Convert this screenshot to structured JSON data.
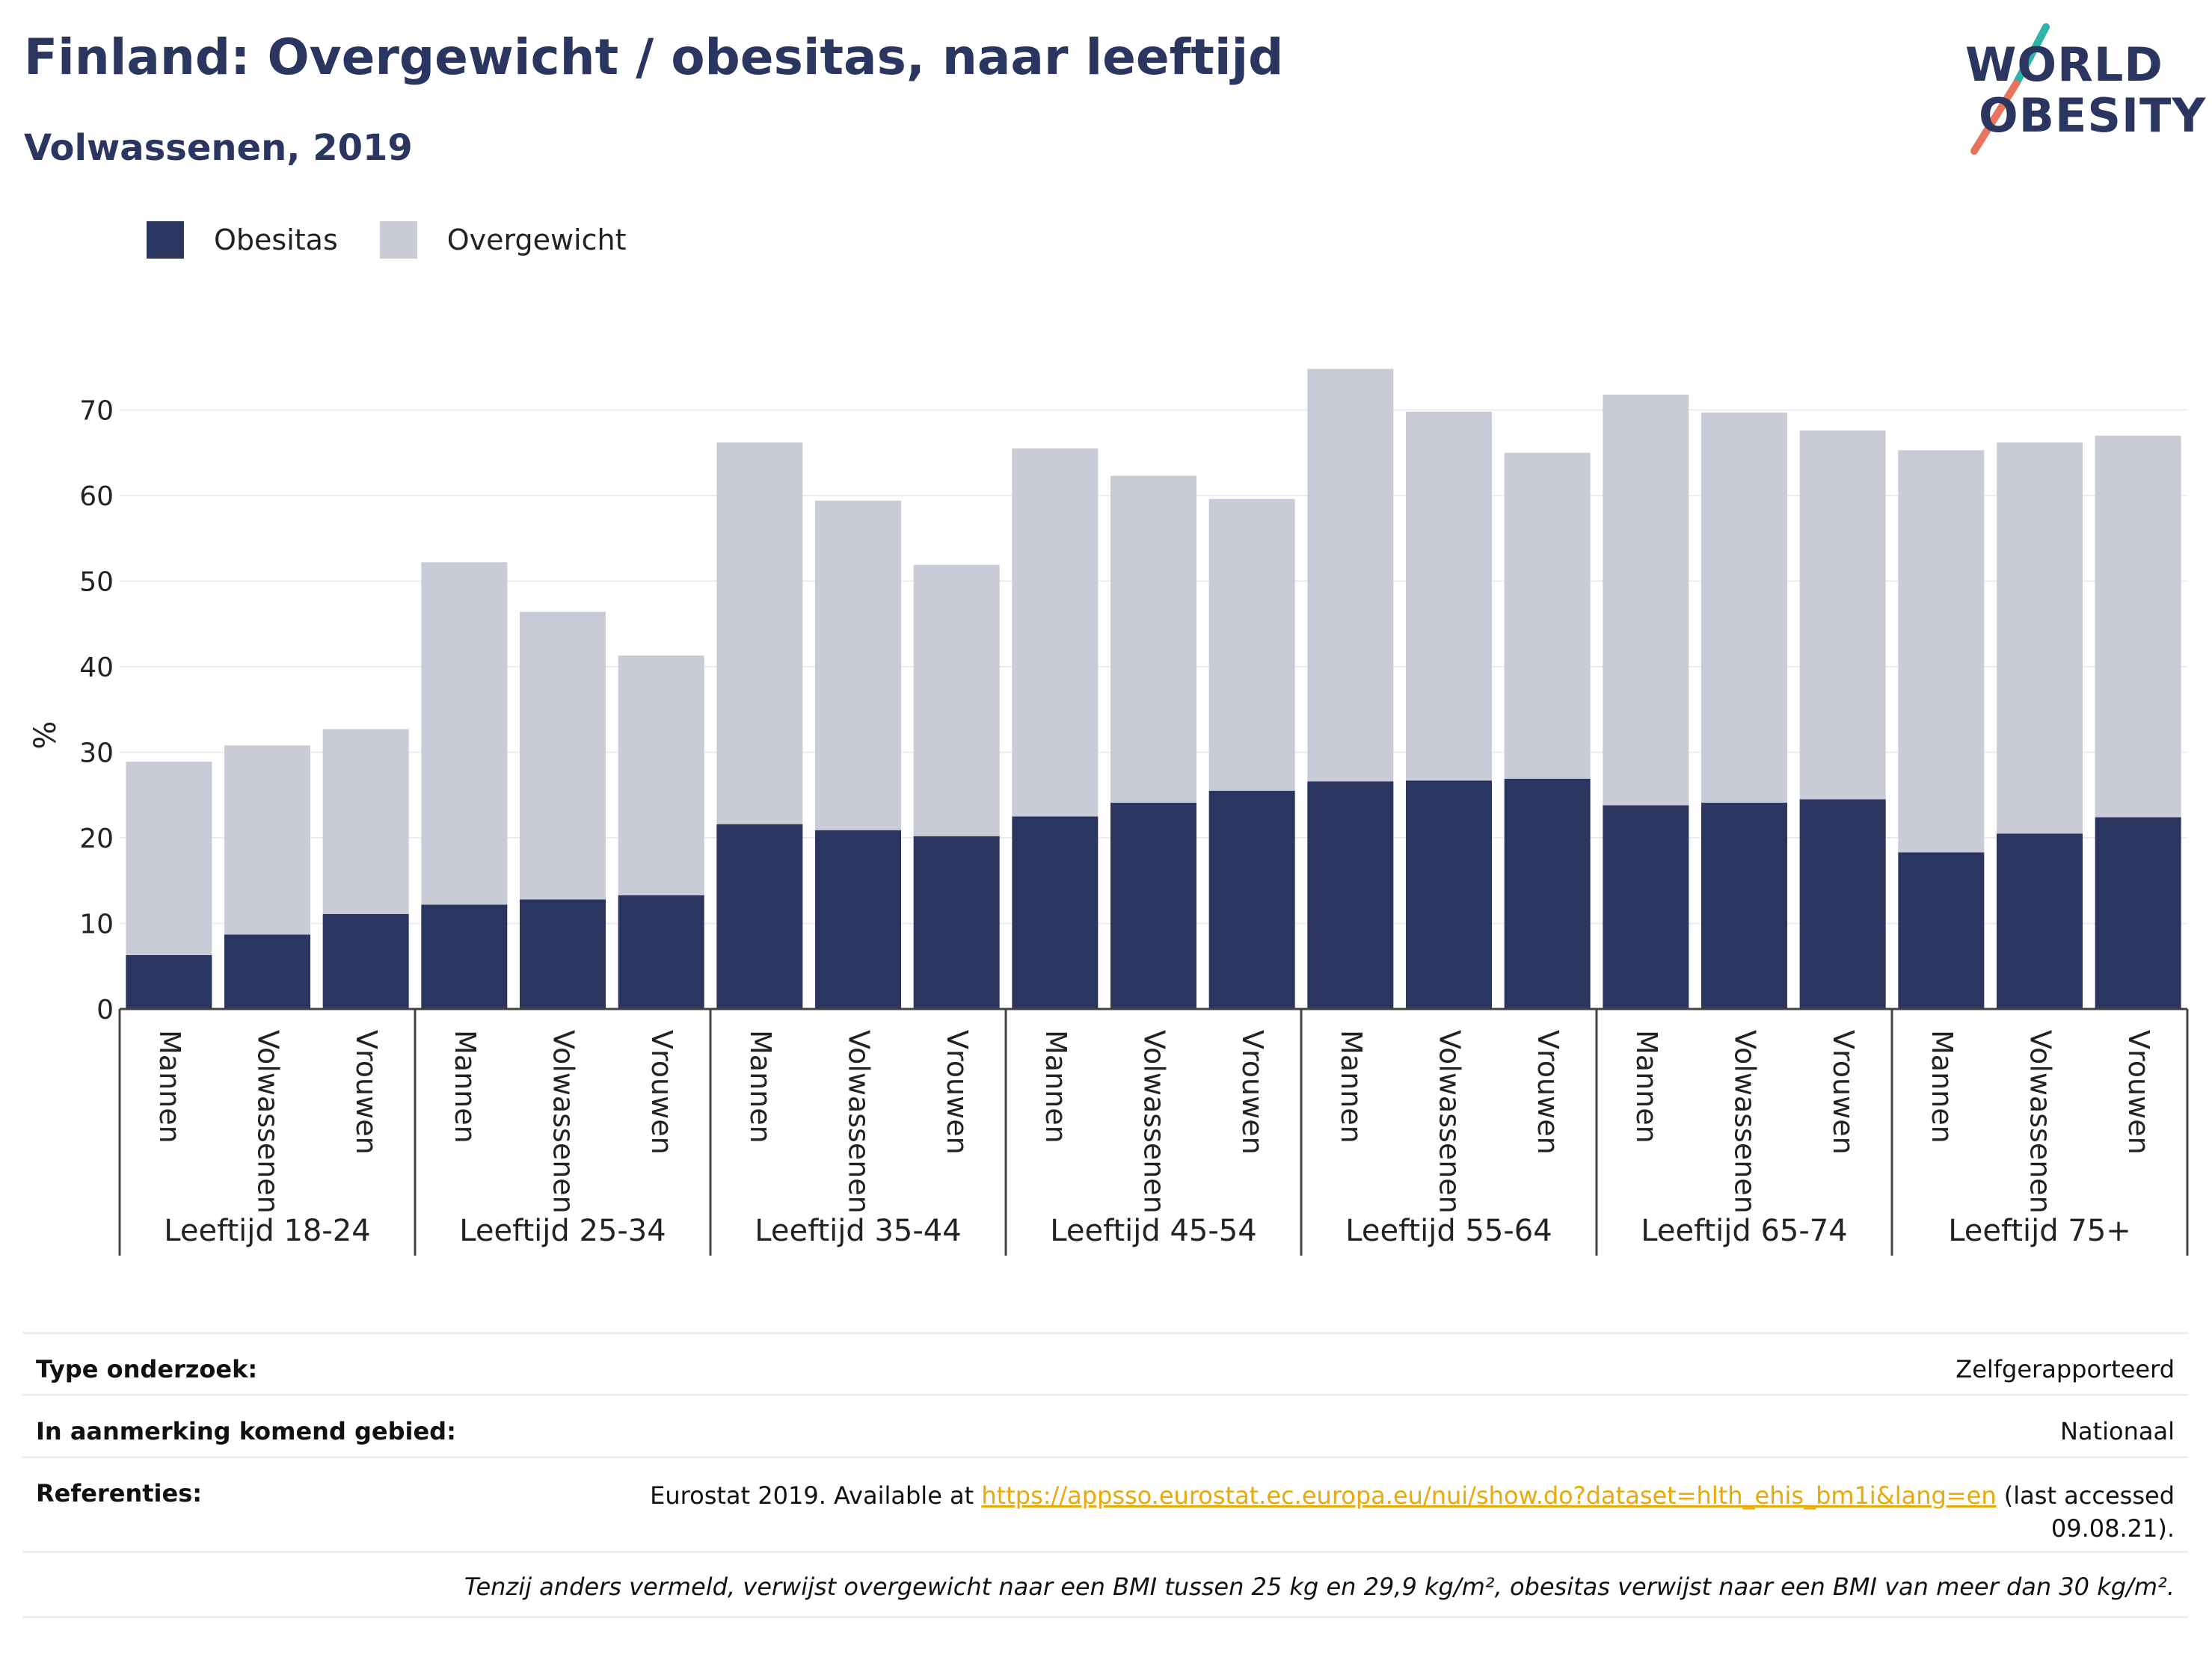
{
  "header": {
    "title": "Finland: Overgewicht / obesitas, naar leeftijd",
    "subtitle": "Volwassenen, 2019"
  },
  "logo": {
    "line1": "WORLD",
    "line2": "OBESITY",
    "accent_teal": "#2fb5a8",
    "accent_coral": "#e8735e"
  },
  "chart_data": {
    "type": "bar",
    "stacked": true,
    "ylabel": "%",
    "ylim": [
      0,
      75
    ],
    "yticks": [
      0,
      10,
      20,
      30,
      40,
      50,
      60,
      70
    ],
    "grid": true,
    "legend_position": "top-left",
    "groups": [
      "Leeftijd 18-24",
      "Leeftijd 25-34",
      "Leeftijd 35-44",
      "Leeftijd 45-54",
      "Leeftijd 55-64",
      "Leeftijd 65-74",
      "Leeftijd 75+"
    ],
    "subcategories": [
      "Mannen",
      "Volwassenen",
      "Vrouwen"
    ],
    "series": [
      {
        "name": "Obesitas",
        "color": "#2a3560",
        "values": [
          6.3,
          8.7,
          11.1,
          12.2,
          12.8,
          13.3,
          21.6,
          20.9,
          20.2,
          22.5,
          24.1,
          25.5,
          26.6,
          26.7,
          26.9,
          23.8,
          24.1,
          24.5,
          18.3,
          20.5,
          22.4
        ]
      },
      {
        "name": "Overgewicht",
        "color": "#c9cbd7",
        "values": [
          22.6,
          22.1,
          21.6,
          40.0,
          33.6,
          28.0,
          44.6,
          38.5,
          31.7,
          43.0,
          38.2,
          34.1,
          48.2,
          43.1,
          38.1,
          48.0,
          45.6,
          43.1,
          47.0,
          45.7,
          44.6
        ]
      }
    ]
  },
  "info": {
    "survey_label": "Type onderzoek:",
    "survey_value": "Zelfgerapporteerd",
    "area_label": "In aanmerking komend gebied:",
    "area_value": "Nationaal",
    "ref_label": "Referenties:",
    "ref_prefix": "Eurostat 2019. Available at ",
    "ref_link": "https://appsso.eurostat.ec.europa.eu/nui/show.do?dataset=hlth_ehis_bm1i&lang=en",
    "ref_suffix_1": " (last accessed",
    "ref_suffix_2": "09.08.21).",
    "note": "Tenzij anders vermeld, verwijst overgewicht naar een BMI tussen 25 kg en 29,9 kg/m², obesitas verwijst naar een BMI van meer dan 30 kg/m²."
  }
}
